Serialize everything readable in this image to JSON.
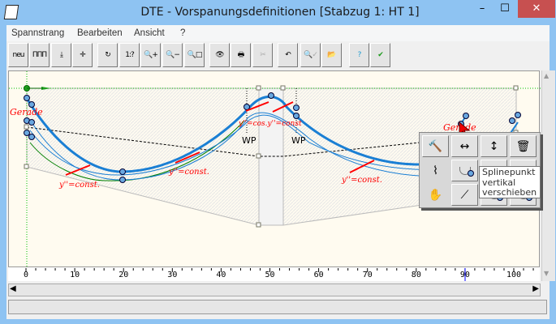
{
  "window": {
    "title": "DTE - Vorspanungsdefinitionen  [Stabzug 1: HT 1]",
    "minimize": "–",
    "maximize": "☐",
    "close": "✕"
  },
  "menu": [
    "Spannstrang",
    "Bearbeiten",
    "Ansicht",
    "?"
  ],
  "toolbar": [
    {
      "name": "new",
      "label": "neu"
    },
    {
      "name": "strands",
      "label": "ΠΠΠ"
    },
    {
      "name": "curve-down",
      "label": "⤓"
    },
    {
      "name": "curve-axes",
      "label": "✛"
    },
    {
      "name": "rotate",
      "label": "↻"
    },
    {
      "name": "scale",
      "label": "1:?"
    },
    {
      "name": "zoom-in",
      "label": "🔍+"
    },
    {
      "name": "zoom-out",
      "label": "🔍−"
    },
    {
      "name": "zoom-window",
      "label": "🔍□"
    },
    {
      "name": "view",
      "label": "👁"
    },
    {
      "name": "print",
      "label": "🖶"
    },
    {
      "name": "disabled-tool",
      "label": "✂"
    },
    {
      "name": "undo",
      "label": "↶"
    },
    {
      "name": "check-disabled",
      "label": "🔍✓"
    },
    {
      "name": "open-folder",
      "label": "📂"
    },
    {
      "name": "help",
      "label": "?"
    },
    {
      "name": "ok",
      "label": "✔"
    }
  ],
  "canvas": {
    "labels_gerade": [
      "Gerade",
      "Gerade"
    ],
    "labels_const": [
      "y''=const.",
      "y''=const.",
      "y''=const.",
      "y''=cos.y''=const"
    ],
    "wp_labels": [
      "WP",
      "WP"
    ]
  },
  "ruler": {
    "ticks": [
      "0",
      "10",
      "20",
      "30",
      "40",
      "50",
      "60",
      "70",
      "80",
      "90",
      "100"
    ],
    "marker": 90
  },
  "popup": {
    "buttons": [
      "hammer",
      "move-horizontal",
      "move-vertical",
      "delete",
      "spring",
      "spline-point",
      "spline-point-2",
      "spline-point-3",
      "grab",
      "spline-tangent",
      "spline-4",
      "spline-5"
    ],
    "tooltip": [
      "Splinepunkt",
      "vertikal",
      "verschieben"
    ]
  },
  "colors": {
    "curve": "#1a7fd4",
    "annotation": "#ff0000",
    "guide": "#00c000",
    "canvas": "#fffbf0"
  }
}
